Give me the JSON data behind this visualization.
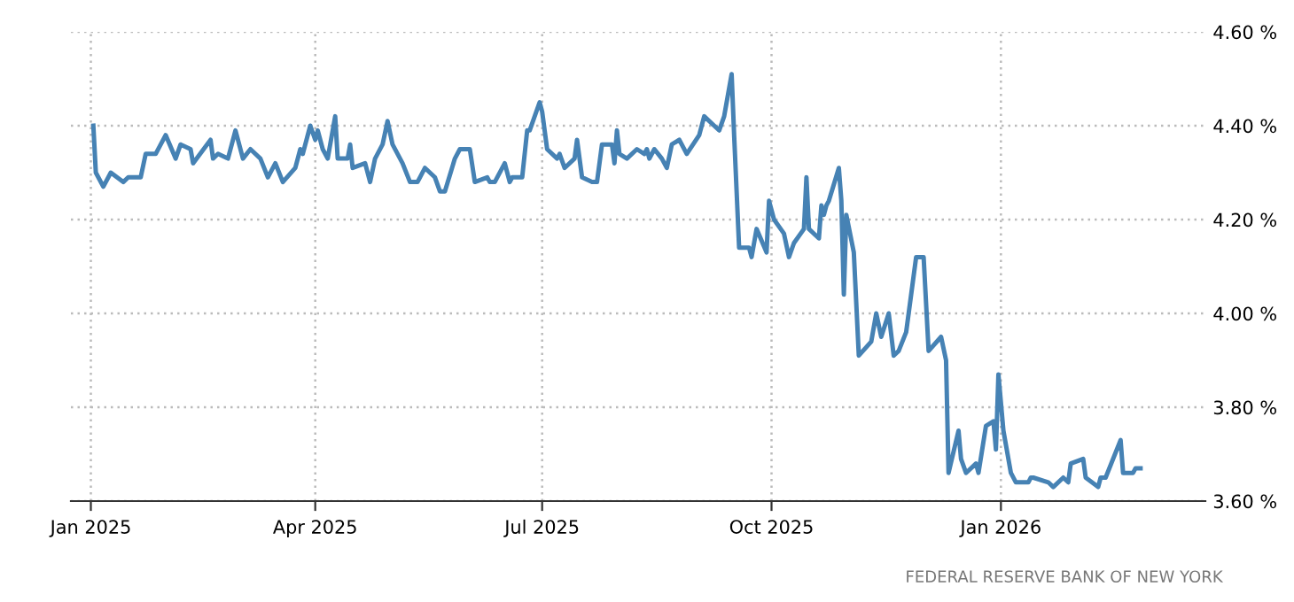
{
  "chart_data": {
    "type": "line",
    "x": [
      "2025-01-02",
      "2025-01-03",
      "2025-01-06",
      "2025-01-09",
      "2025-01-14",
      "2025-01-16",
      "2025-01-21",
      "2025-01-23",
      "2025-01-27",
      "2025-01-31",
      "2025-02-04",
      "2025-02-06",
      "2025-02-10",
      "2025-02-11",
      "2025-02-18",
      "2025-02-19",
      "2025-02-21",
      "2025-02-25",
      "2025-02-28",
      "2025-03-03",
      "2025-03-06",
      "2025-03-10",
      "2025-03-13",
      "2025-03-16",
      "2025-03-19",
      "2025-03-24",
      "2025-03-26",
      "2025-03-27",
      "2025-03-30",
      "2025-04-01",
      "2025-04-02",
      "2025-04-04",
      "2025-04-06",
      "2025-04-09",
      "2025-04-10",
      "2025-04-14",
      "2025-04-15",
      "2025-04-16",
      "2025-04-21",
      "2025-04-23",
      "2025-04-25",
      "2025-04-28",
      "2025-04-30",
      "2025-05-02",
      "2025-05-06",
      "2025-05-09",
      "2025-05-12",
      "2025-05-13",
      "2025-05-15",
      "2025-05-19",
      "2025-05-21",
      "2025-05-23",
      "2025-05-27",
      "2025-05-29",
      "2025-06-02",
      "2025-06-04",
      "2025-06-09",
      "2025-06-10",
      "2025-06-12",
      "2025-06-16",
      "2025-06-18",
      "2025-06-19",
      "2025-06-23",
      "2025-06-25",
      "2025-06-26",
      "2025-06-30",
      "2025-07-01",
      "2025-07-03",
      "2025-07-07",
      "2025-07-08",
      "2025-07-10",
      "2025-07-14",
      "2025-07-15",
      "2025-07-16",
      "2025-07-17",
      "2025-07-21",
      "2025-07-23",
      "2025-07-25",
      "2025-07-29",
      "2025-07-30",
      "2025-07-31",
      "2025-08-01",
      "2025-08-04",
      "2025-08-08",
      "2025-08-11",
      "2025-08-12",
      "2025-08-13",
      "2025-08-15",
      "2025-08-18",
      "2025-08-20",
      "2025-08-22",
      "2025-08-25",
      "2025-08-28",
      "2025-09-02",
      "2025-09-04",
      "2025-09-08",
      "2025-09-10",
      "2025-09-12",
      "2025-09-15",
      "2025-09-16",
      "2025-09-18",
      "2025-09-22",
      "2025-09-23",
      "2025-09-25",
      "2025-09-29",
      "2025-09-30",
      "2025-10-02",
      "2025-10-06",
      "2025-10-08",
      "2025-10-10",
      "2025-10-14",
      "2025-10-15",
      "2025-10-16",
      "2025-10-20",
      "2025-10-21",
      "2025-10-22",
      "2025-10-23",
      "2025-10-24",
      "2025-10-28",
      "2025-10-29",
      "2025-10-30",
      "2025-10-31",
      "2025-11-03",
      "2025-11-05",
      "2025-11-10",
      "2025-11-12",
      "2025-11-14",
      "2025-11-17",
      "2025-11-19",
      "2025-11-21",
      "2025-11-24",
      "2025-11-28",
      "2025-12-01",
      "2025-12-03",
      "2025-12-08",
      "2025-12-10",
      "2025-12-11",
      "2025-12-15",
      "2025-12-16",
      "2025-12-18",
      "2025-12-22",
      "2025-12-23",
      "2025-12-26",
      "2025-12-29",
      "2025-12-30",
      "2025-12-31",
      "2026-01-02",
      "2026-01-05",
      "2026-01-07",
      "2026-01-12",
      "2026-01-13",
      "2026-01-14",
      "2026-01-20",
      "2026-01-22",
      "2026-01-26",
      "2026-01-28",
      "2026-01-29",
      "2026-02-03",
      "2026-02-04",
      "2026-02-09",
      "2026-02-10",
      "2026-02-12",
      "2026-02-18",
      "2026-02-19",
      "2026-02-23",
      "2026-02-24",
      "2026-02-26"
    ],
    "series": [
      {
        "color": "#4682b4",
        "values": [
          4.4,
          4.3,
          4.27,
          4.3,
          4.28,
          4.29,
          4.29,
          4.34,
          4.34,
          4.38,
          4.33,
          4.36,
          4.35,
          4.32,
          4.37,
          4.33,
          4.34,
          4.33,
          4.39,
          4.33,
          4.35,
          4.33,
          4.29,
          4.32,
          4.28,
          4.31,
          4.35,
          4.34,
          4.4,
          4.37,
          4.39,
          4.35,
          4.33,
          4.42,
          4.33,
          4.33,
          4.36,
          4.31,
          4.32,
          4.28,
          4.33,
          4.36,
          4.41,
          4.36,
          4.32,
          4.28,
          4.28,
          4.29,
          4.31,
          4.29,
          4.26,
          4.26,
          4.33,
          4.35,
          4.35,
          4.28,
          4.29,
          4.28,
          4.28,
          4.32,
          4.28,
          4.29,
          4.29,
          4.39,
          4.39,
          4.45,
          4.43,
          4.35,
          4.33,
          4.34,
          4.31,
          4.33,
          4.37,
          4.33,
          4.29,
          4.28,
          4.28,
          4.36,
          4.36,
          4.32,
          4.39,
          4.34,
          4.33,
          4.35,
          4.34,
          4.35,
          4.33,
          4.35,
          4.33,
          4.31,
          4.36,
          4.37,
          4.34,
          4.38,
          4.42,
          4.4,
          4.39,
          4.42,
          4.51,
          4.38,
          4.14,
          4.14,
          4.12,
          4.18,
          4.13,
          4.24,
          4.2,
          4.17,
          4.12,
          4.15,
          4.18,
          4.29,
          4.18,
          4.16,
          4.23,
          4.21,
          4.23,
          4.24,
          4.31,
          4.24,
          4.04,
          4.21,
          4.13,
          3.91,
          3.94,
          4.0,
          3.95,
          4.0,
          3.91,
          3.92,
          3.96,
          4.12,
          4.12,
          3.92,
          3.95,
          3.9,
          3.66,
          3.75,
          3.69,
          3.66,
          3.68,
          3.66,
          3.76,
          3.77,
          3.71,
          3.87,
          3.75,
          3.66,
          3.64,
          3.64,
          3.65,
          3.65,
          3.64,
          3.63,
          3.65,
          3.64,
          3.68,
          3.69,
          3.65,
          3.63,
          3.65,
          3.65,
          3.73,
          3.66,
          3.66,
          3.67,
          3.67
        ]
      }
    ],
    "xlim": [
      "2024-12-24",
      "2026-03-24"
    ],
    "xticks": [
      {
        "value": "2025-01-01",
        "label": "Jan 2025"
      },
      {
        "value": "2025-04-01",
        "label": "Apr 2025"
      },
      {
        "value": "2025-07-01",
        "label": "Jul 2025"
      },
      {
        "value": "2025-10-01",
        "label": "Oct 2025"
      },
      {
        "value": "2026-01-01",
        "label": "Jan 2026"
      }
    ],
    "ylim": [
      3.6,
      4.6
    ],
    "yticks": [
      {
        "value": 3.6,
        "label": "3.60 %"
      },
      {
        "value": 3.8,
        "label": "3.80 %"
      },
      {
        "value": 4.0,
        "label": "4.00 %"
      },
      {
        "value": 4.2,
        "label": "4.20 %"
      },
      {
        "value": 4.4,
        "label": "4.40 %"
      },
      {
        "value": 4.6,
        "label": "4.60 %"
      }
    ],
    "grid": true,
    "line_style": "solid",
    "annotations": [
      "FEDERAL RESERVE BANK OF NEW YORK"
    ]
  }
}
